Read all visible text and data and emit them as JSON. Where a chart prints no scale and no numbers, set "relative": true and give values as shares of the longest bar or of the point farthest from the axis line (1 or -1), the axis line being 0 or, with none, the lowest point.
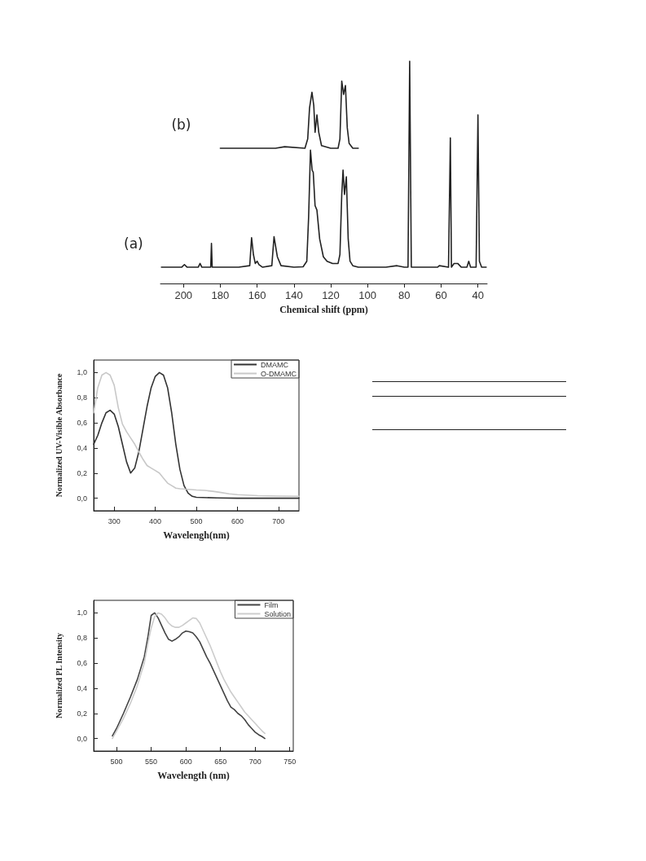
{
  "chart_data": [
    {
      "type": "line",
      "relative": true,
      "xlabel": "Chemical shift (ppm)",
      "xlim": [
        212.5,
        35
      ],
      "xticks": [
        200,
        180,
        160,
        140,
        120,
        100,
        80,
        60,
        40
      ],
      "series": [
        {
          "name": "(a)",
          "color": "#222222",
          "x": [
            212,
            201,
            199.5,
            198,
            192,
            191,
            190,
            185.2,
            184.8,
            184.4,
            170,
            164,
            163,
            162,
            161,
            160,
            159,
            157,
            152,
            150.8,
            149,
            147,
            140,
            135,
            133,
            132,
            131,
            130.1,
            129.5,
            128.5,
            127.5,
            126,
            124,
            122,
            119,
            116,
            115,
            114,
            113.3,
            112.5,
            111.5,
            110.5,
            109.5,
            108,
            105,
            90,
            84,
            80,
            78,
            77.1,
            76.2,
            70,
            62,
            61,
            56,
            55,
            54.4,
            53,
            51,
            49,
            46,
            45,
            44,
            41,
            40,
            39.2,
            38,
            35.5
          ],
          "values": [
            0.073,
            0.073,
            0.085,
            0.073,
            0.073,
            0.09,
            0.073,
            0.073,
            0.18,
            0.073,
            0.073,
            0.08,
            0.206,
            0.13,
            0.09,
            0.1,
            0.085,
            0.073,
            0.08,
            0.21,
            0.12,
            0.08,
            0.073,
            0.075,
            0.1,
            0.3,
            0.6,
            0.51,
            0.5,
            0.35,
            0.33,
            0.2,
            0.12,
            0.1,
            0.09,
            0.09,
            0.13,
            0.4,
            0.51,
            0.4,
            0.48,
            0.2,
            0.1,
            0.08,
            0.073,
            0.073,
            0.08,
            0.073,
            0.073,
            1.0,
            0.073,
            0.073,
            0.073,
            0.08,
            0.073,
            0.655,
            0.073,
            0.09,
            0.09,
            0.073,
            0.073,
            0.1,
            0.073,
            0.073,
            0.758,
            0.1,
            0.073,
            0.073
          ]
        },
        {
          "name": "(b)",
          "color": "#222222",
          "x": [
            180,
            150,
            145,
            134,
            132.5,
            131.5,
            130.2,
            129.2,
            128.5,
            127.5,
            126.5,
            125,
            120,
            116,
            115,
            114,
            113,
            112,
            111,
            110,
            108,
            105
          ],
          "values": [
            0.608,
            0.608,
            0.615,
            0.608,
            0.65,
            0.79,
            0.86,
            0.8,
            0.68,
            0.758,
            0.68,
            0.62,
            0.608,
            0.608,
            0.65,
            0.91,
            0.85,
            0.89,
            0.7,
            0.63,
            0.608,
            0.608
          ]
        }
      ]
    },
    {
      "type": "line",
      "xlabel": "Wavelengh(nm)",
      "ylabel": "Normalized UV-Visible Absorbance",
      "xlim": [
        250,
        750
      ],
      "xticks": [
        300,
        400,
        500,
        600,
        700
      ],
      "ylim": [
        -0.1,
        1.1
      ],
      "yticks": [
        {
          "value": 0,
          "label": "0,0"
        },
        {
          "value": 0.2,
          "label": "0,2"
        },
        {
          "value": 0.4,
          "label": "0,4"
        },
        {
          "value": 0.6,
          "label": "0,6"
        },
        {
          "value": 0.8,
          "label": "0,8"
        },
        {
          "value": 1,
          "label": "1,0"
        }
      ],
      "legend": "top right",
      "series": [
        {
          "name": "DMAMC",
          "color": "#333333",
          "x": [
            250,
            260,
            270,
            280,
            290,
            300,
            310,
            320,
            330,
            340,
            350,
            360,
            370,
            380,
            390,
            400,
            410,
            420,
            430,
            440,
            450,
            460,
            470,
            480,
            490,
            500,
            550,
            600,
            750
          ],
          "values": [
            0.43,
            0.5,
            0.6,
            0.68,
            0.7,
            0.67,
            0.57,
            0.43,
            0.29,
            0.2,
            0.24,
            0.37,
            0.55,
            0.73,
            0.88,
            0.97,
            1.0,
            0.98,
            0.88,
            0.68,
            0.43,
            0.23,
            0.1,
            0.04,
            0.015,
            0.007,
            0.002,
            0.0,
            0.0
          ]
        },
        {
          "name": "O-DMAMC",
          "color": "#c8c8c8",
          "x": [
            250,
            260,
            270,
            280,
            290,
            300,
            310,
            320,
            330,
            340,
            350,
            360,
            370,
            380,
            390,
            400,
            410,
            420,
            430,
            440,
            450,
            460,
            480,
            500,
            520,
            540,
            560,
            580,
            600,
            650,
            700,
            750
          ],
          "values": [
            0.68,
            0.88,
            0.98,
            1.0,
            0.98,
            0.9,
            0.72,
            0.59,
            0.53,
            0.48,
            0.43,
            0.37,
            0.31,
            0.26,
            0.24,
            0.22,
            0.2,
            0.16,
            0.12,
            0.1,
            0.08,
            0.075,
            0.07,
            0.065,
            0.062,
            0.055,
            0.045,
            0.035,
            0.028,
            0.02,
            0.017,
            0.015
          ]
        }
      ]
    },
    {
      "type": "line",
      "xlabel": "Wavelength (nm)",
      "ylabel": "Normalized PL Intensity",
      "xlim": [
        467,
        755
      ],
      "xticks": [
        500,
        550,
        600,
        650,
        700,
        750
      ],
      "ylim": [
        -0.1,
        1.1
      ],
      "yticks": [
        {
          "value": 0,
          "label": "0,0"
        },
        {
          "value": 0.2,
          "label": "0,2"
        },
        {
          "value": 0.4,
          "label": "0,4"
        },
        {
          "value": 0.6,
          "label": "0,6"
        },
        {
          "value": 0.8,
          "label": "0,8"
        },
        {
          "value": 1,
          "label": "1,0"
        }
      ],
      "legend": "top right",
      "series": [
        {
          "name": "Film",
          "color": "#444444",
          "x": [
            494,
            500,
            510,
            520,
            530,
            540,
            545,
            550,
            555,
            560,
            565,
            570,
            575,
            580,
            585,
            590,
            595,
            600,
            605,
            610,
            615,
            620,
            625,
            630,
            635,
            640,
            645,
            650,
            655,
            660,
            665,
            670,
            675,
            680,
            685,
            690,
            695,
            700,
            705,
            710,
            714
          ],
          "values": [
            0.02,
            0.08,
            0.2,
            0.33,
            0.47,
            0.65,
            0.8,
            0.98,
            1.0,
            0.96,
            0.9,
            0.84,
            0.79,
            0.775,
            0.79,
            0.81,
            0.84,
            0.855,
            0.85,
            0.84,
            0.81,
            0.77,
            0.71,
            0.65,
            0.6,
            0.54,
            0.48,
            0.42,
            0.36,
            0.3,
            0.25,
            0.23,
            0.2,
            0.18,
            0.15,
            0.11,
            0.08,
            0.05,
            0.03,
            0.015,
            0.0
          ]
        },
        {
          "name": "Solution",
          "color": "#cccccc",
          "x": [
            494,
            500,
            510,
            520,
            530,
            540,
            545,
            550,
            555,
            560,
            565,
            570,
            575,
            580,
            585,
            590,
            595,
            600,
            605,
            610,
            615,
            620,
            625,
            630,
            635,
            640,
            645,
            650,
            655,
            660,
            665,
            670,
            675,
            680,
            685,
            690,
            695,
            700,
            705,
            710,
            714
          ],
          "values": [
            0.0,
            0.06,
            0.16,
            0.28,
            0.42,
            0.6,
            0.75,
            0.88,
            0.97,
            1.0,
            0.99,
            0.96,
            0.92,
            0.895,
            0.885,
            0.885,
            0.9,
            0.92,
            0.94,
            0.96,
            0.955,
            0.92,
            0.86,
            0.8,
            0.74,
            0.67,
            0.6,
            0.53,
            0.47,
            0.42,
            0.37,
            0.33,
            0.29,
            0.25,
            0.21,
            0.18,
            0.15,
            0.12,
            0.09,
            0.06,
            0.04
          ]
        }
      ]
    }
  ]
}
